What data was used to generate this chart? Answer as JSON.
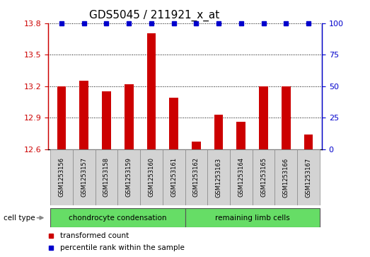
{
  "title": "GDS5045 / 211921_x_at",
  "samples": [
    "GSM1253156",
    "GSM1253157",
    "GSM1253158",
    "GSM1253159",
    "GSM1253160",
    "GSM1253161",
    "GSM1253162",
    "GSM1253163",
    "GSM1253164",
    "GSM1253165",
    "GSM1253166",
    "GSM1253167"
  ],
  "transformed_counts": [
    13.2,
    13.25,
    13.15,
    13.22,
    13.7,
    13.09,
    12.67,
    12.93,
    12.86,
    13.2,
    13.2,
    12.74
  ],
  "percentile_ranks": [
    100,
    100,
    100,
    100,
    100,
    100,
    100,
    100,
    100,
    100,
    100,
    100
  ],
  "bar_color": "#cc0000",
  "dot_color": "#0000cc",
  "ylim_left": [
    12.6,
    13.8
  ],
  "ylim_right": [
    0,
    100
  ],
  "yticks_left": [
    12.6,
    12.9,
    13.2,
    13.5,
    13.8
  ],
  "yticks_right": [
    0,
    25,
    50,
    75,
    100
  ],
  "group1_label": "chondrocyte condensation",
  "group1_samples": 6,
  "group2_label": "remaining limb cells",
  "group2_samples": 6,
  "group_color": "#66dd66",
  "cell_type_label": "cell type",
  "legend_items": [
    {
      "label": "transformed count",
      "color": "#cc0000"
    },
    {
      "label": "percentile rank within the sample",
      "color": "#0000cc"
    }
  ],
  "sample_box_color": "#d3d3d3",
  "title_fontsize": 11,
  "tick_fontsize": 8,
  "label_fontsize": 7
}
